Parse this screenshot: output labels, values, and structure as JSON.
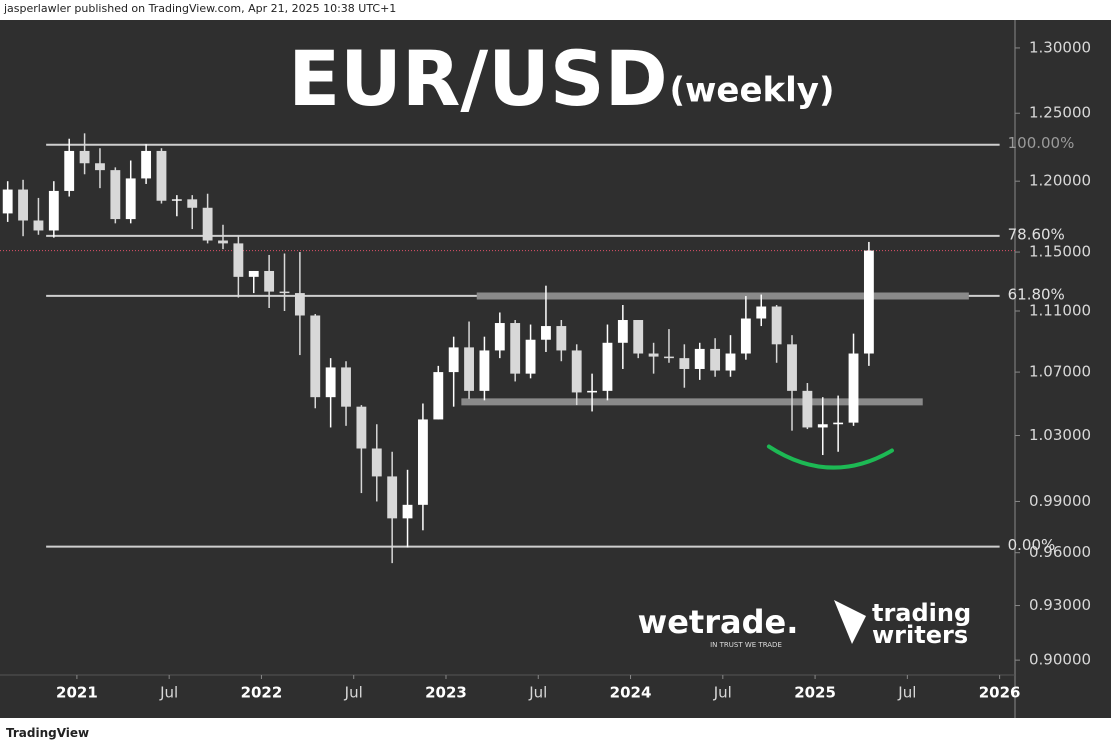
{
  "header": "jasperlawler published on TradingView.com, Apr 21, 2025 10:38 UTC+1",
  "footer": "TradingView",
  "chart_data": {
    "type": "candlestick",
    "title": "EUR/USD",
    "subtitle": "(weekly)",
    "logos": [
      "wetrade.",
      "IN TRUST WE TRADE",
      "trading",
      "writers"
    ],
    "log_scale": true,
    "up_color": "#ffffff",
    "down_color": "#d8d8d8",
    "x": [
      "2020-08",
      "2020-09",
      "2020-10",
      "2020-11",
      "2020-12",
      "2021-01",
      "2021-02",
      "2021-03",
      "2021-04",
      "2021-05",
      "2021-06",
      "2021-07",
      "2021-08",
      "2021-09",
      "2021-10",
      "2021-11",
      "2021-12",
      "2022-01",
      "2022-02",
      "2022-03",
      "2022-04",
      "2022-05",
      "2022-06",
      "2022-07",
      "2022-08",
      "2022-09",
      "2022-10",
      "2022-11",
      "2022-12",
      "2023-01",
      "2023-02",
      "2023-03",
      "2023-04",
      "2023-05",
      "2023-06",
      "2023-07",
      "2023-08",
      "2023-09",
      "2023-10",
      "2023-11",
      "2023-12",
      "2024-01",
      "2024-02",
      "2024-03",
      "2024-04",
      "2024-05",
      "2024-06",
      "2024-07",
      "2024-08",
      "2024-09",
      "2024-10",
      "2024-11",
      "2024-12",
      "2025-01",
      "2025-02",
      "2025-03",
      "2025-04"
    ],
    "open": [
      1.177,
      1.194,
      1.172,
      1.165,
      1.193,
      1.222,
      1.213,
      1.208,
      1.173,
      1.202,
      1.222,
      1.186,
      1.187,
      1.181,
      1.158,
      1.156,
      1.133,
      1.137,
      1.123,
      1.122,
      1.107,
      1.054,
      1.073,
      1.048,
      1.022,
      1.005,
      0.98,
      0.988,
      1.04,
      1.07,
      1.086,
      1.058,
      1.084,
      1.102,
      1.069,
      1.091,
      1.1,
      1.084,
      1.057,
      1.058,
      1.089,
      1.104,
      1.082,
      1.08,
      1.079,
      1.072,
      1.085,
      1.071,
      1.082,
      1.105,
      1.113,
      1.088,
      1.058,
      1.035,
      1.037,
      1.038,
      1.082
    ],
    "high": [
      1.2,
      1.201,
      1.188,
      1.2,
      1.231,
      1.235,
      1.224,
      1.21,
      1.215,
      1.227,
      1.224,
      1.19,
      1.19,
      1.191,
      1.169,
      1.161,
      1.137,
      1.148,
      1.149,
      1.15,
      1.108,
      1.079,
      1.077,
      1.049,
      1.037,
      1.02,
      1.009,
      1.05,
      1.074,
      1.093,
      1.103,
      1.093,
      1.109,
      1.104,
      1.101,
      1.127,
      1.104,
      1.088,
      1.069,
      1.101,
      1.114,
      1.104,
      1.089,
      1.098,
      1.088,
      1.089,
      1.092,
      1.094,
      1.12,
      1.121,
      1.114,
      1.094,
      1.063,
      1.054,
      1.055,
      1.095,
      1.157
    ],
    "low": [
      1.171,
      1.161,
      1.162,
      1.16,
      1.189,
      1.205,
      1.195,
      1.17,
      1.17,
      1.198,
      1.184,
      1.175,
      1.166,
      1.156,
      1.152,
      1.119,
      1.122,
      1.112,
      1.11,
      1.081,
      1.047,
      1.035,
      1.036,
      0.995,
      0.99,
      0.954,
      0.963,
      0.973,
      1.04,
      1.048,
      1.053,
      1.052,
      1.079,
      1.064,
      1.066,
      1.083,
      1.077,
      1.049,
      1.045,
      1.052,
      1.072,
      1.079,
      1.069,
      1.076,
      1.06,
      1.065,
      1.067,
      1.067,
      1.078,
      1.1,
      1.076,
      1.033,
      1.034,
      1.018,
      1.02,
      1.036,
      1.074
    ],
    "close": [
      1.194,
      1.172,
      1.165,
      1.193,
      1.222,
      1.213,
      1.208,
      1.173,
      1.202,
      1.222,
      1.186,
      1.187,
      1.181,
      1.158,
      1.156,
      1.133,
      1.137,
      1.123,
      1.122,
      1.107,
      1.054,
      1.073,
      1.048,
      1.022,
      1.005,
      0.98,
      0.988,
      1.04,
      1.07,
      1.086,
      1.058,
      1.084,
      1.102,
      1.069,
      1.091,
      1.1,
      1.084,
      1.057,
      1.058,
      1.089,
      1.104,
      1.082,
      1.08,
      1.079,
      1.072,
      1.085,
      1.071,
      1.082,
      1.105,
      1.113,
      1.088,
      1.058,
      1.035,
      1.037,
      1.038,
      1.082,
      1.151
    ],
    "xlim": [
      "2020-08",
      "2026-02"
    ],
    "xticks": [
      {
        "value": "2021-01",
        "label": "2021"
      },
      {
        "value": "2021-07",
        "label": "Jul"
      },
      {
        "value": "2022-01",
        "label": "2022"
      },
      {
        "value": "2022-07",
        "label": "Jul"
      },
      {
        "value": "2023-01",
        "label": "2023"
      },
      {
        "value": "2023-07",
        "label": "Jul"
      },
      {
        "value": "2024-01",
        "label": "2024"
      },
      {
        "value": "2024-07",
        "label": "Jul"
      },
      {
        "value": "2025-01",
        "label": "2025"
      },
      {
        "value": "2025-07",
        "label": "Jul"
      },
      {
        "value": "2026-01",
        "label": "2026"
      }
    ],
    "ylim": [
      0.892,
      1.322
    ],
    "yticks": [
      {
        "value": 1.3,
        "label": "1.30000"
      },
      {
        "value": 1.25,
        "label": "1.25000"
      },
      {
        "value": 1.2,
        "label": "1.20000"
      },
      {
        "value": 1.15,
        "label": "1.15000"
      },
      {
        "value": 1.11,
        "label": "1.11000"
      },
      {
        "value": 1.07,
        "label": "1.07000"
      },
      {
        "value": 1.03,
        "label": "1.03000"
      },
      {
        "value": 0.99,
        "label": "0.99000"
      },
      {
        "value": 0.96,
        "label": "0.96000"
      },
      {
        "value": 0.93,
        "label": "0.93000"
      },
      {
        "value": 0.9,
        "label": "0.90000"
      }
    ],
    "fib_levels": [
      {
        "value": 1.2266,
        "label": "100.00%"
      },
      {
        "value": 1.1612,
        "label": "78.60%"
      },
      {
        "value": 1.1201,
        "label": "61.80%"
      },
      {
        "value": 0.9635,
        "label": "0.00%"
      }
    ],
    "fib_from": "2020-11",
    "fib_to": "2026-01",
    "zones": [
      {
        "value": 1.12,
        "from": "2023-03",
        "to": "2025-11"
      },
      {
        "value": 1.051,
        "from": "2023-02",
        "to": "2025-08"
      }
    ],
    "arc": {
      "value": 1.011,
      "from": "2024-10",
      "to": "2025-06",
      "color": "#1db954"
    }
  }
}
